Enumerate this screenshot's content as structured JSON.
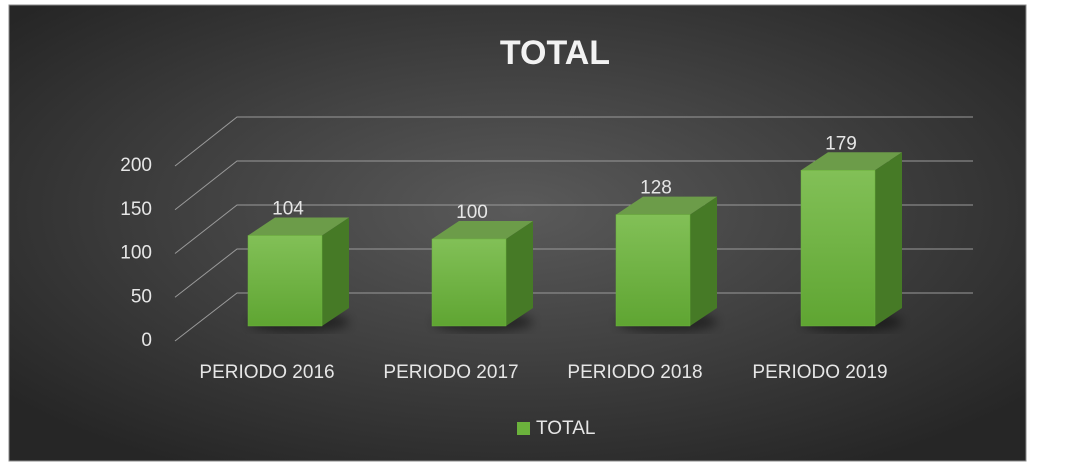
{
  "chart_data": {
    "type": "bar3d",
    "title": "TOTAL",
    "categories": [
      "PERIODO 2016",
      "PERIODO 2017",
      "PERIODO 2018",
      "PERIODO 2019"
    ],
    "series": [
      {
        "name": "TOTAL",
        "color": "#6bb23c",
        "values": [
          104,
          100,
          128,
          179
        ]
      }
    ],
    "ylim": [
      0,
      200
    ],
    "yticks": [
      0,
      50,
      100,
      150,
      200
    ],
    "grid": true,
    "legend": "bottom"
  }
}
